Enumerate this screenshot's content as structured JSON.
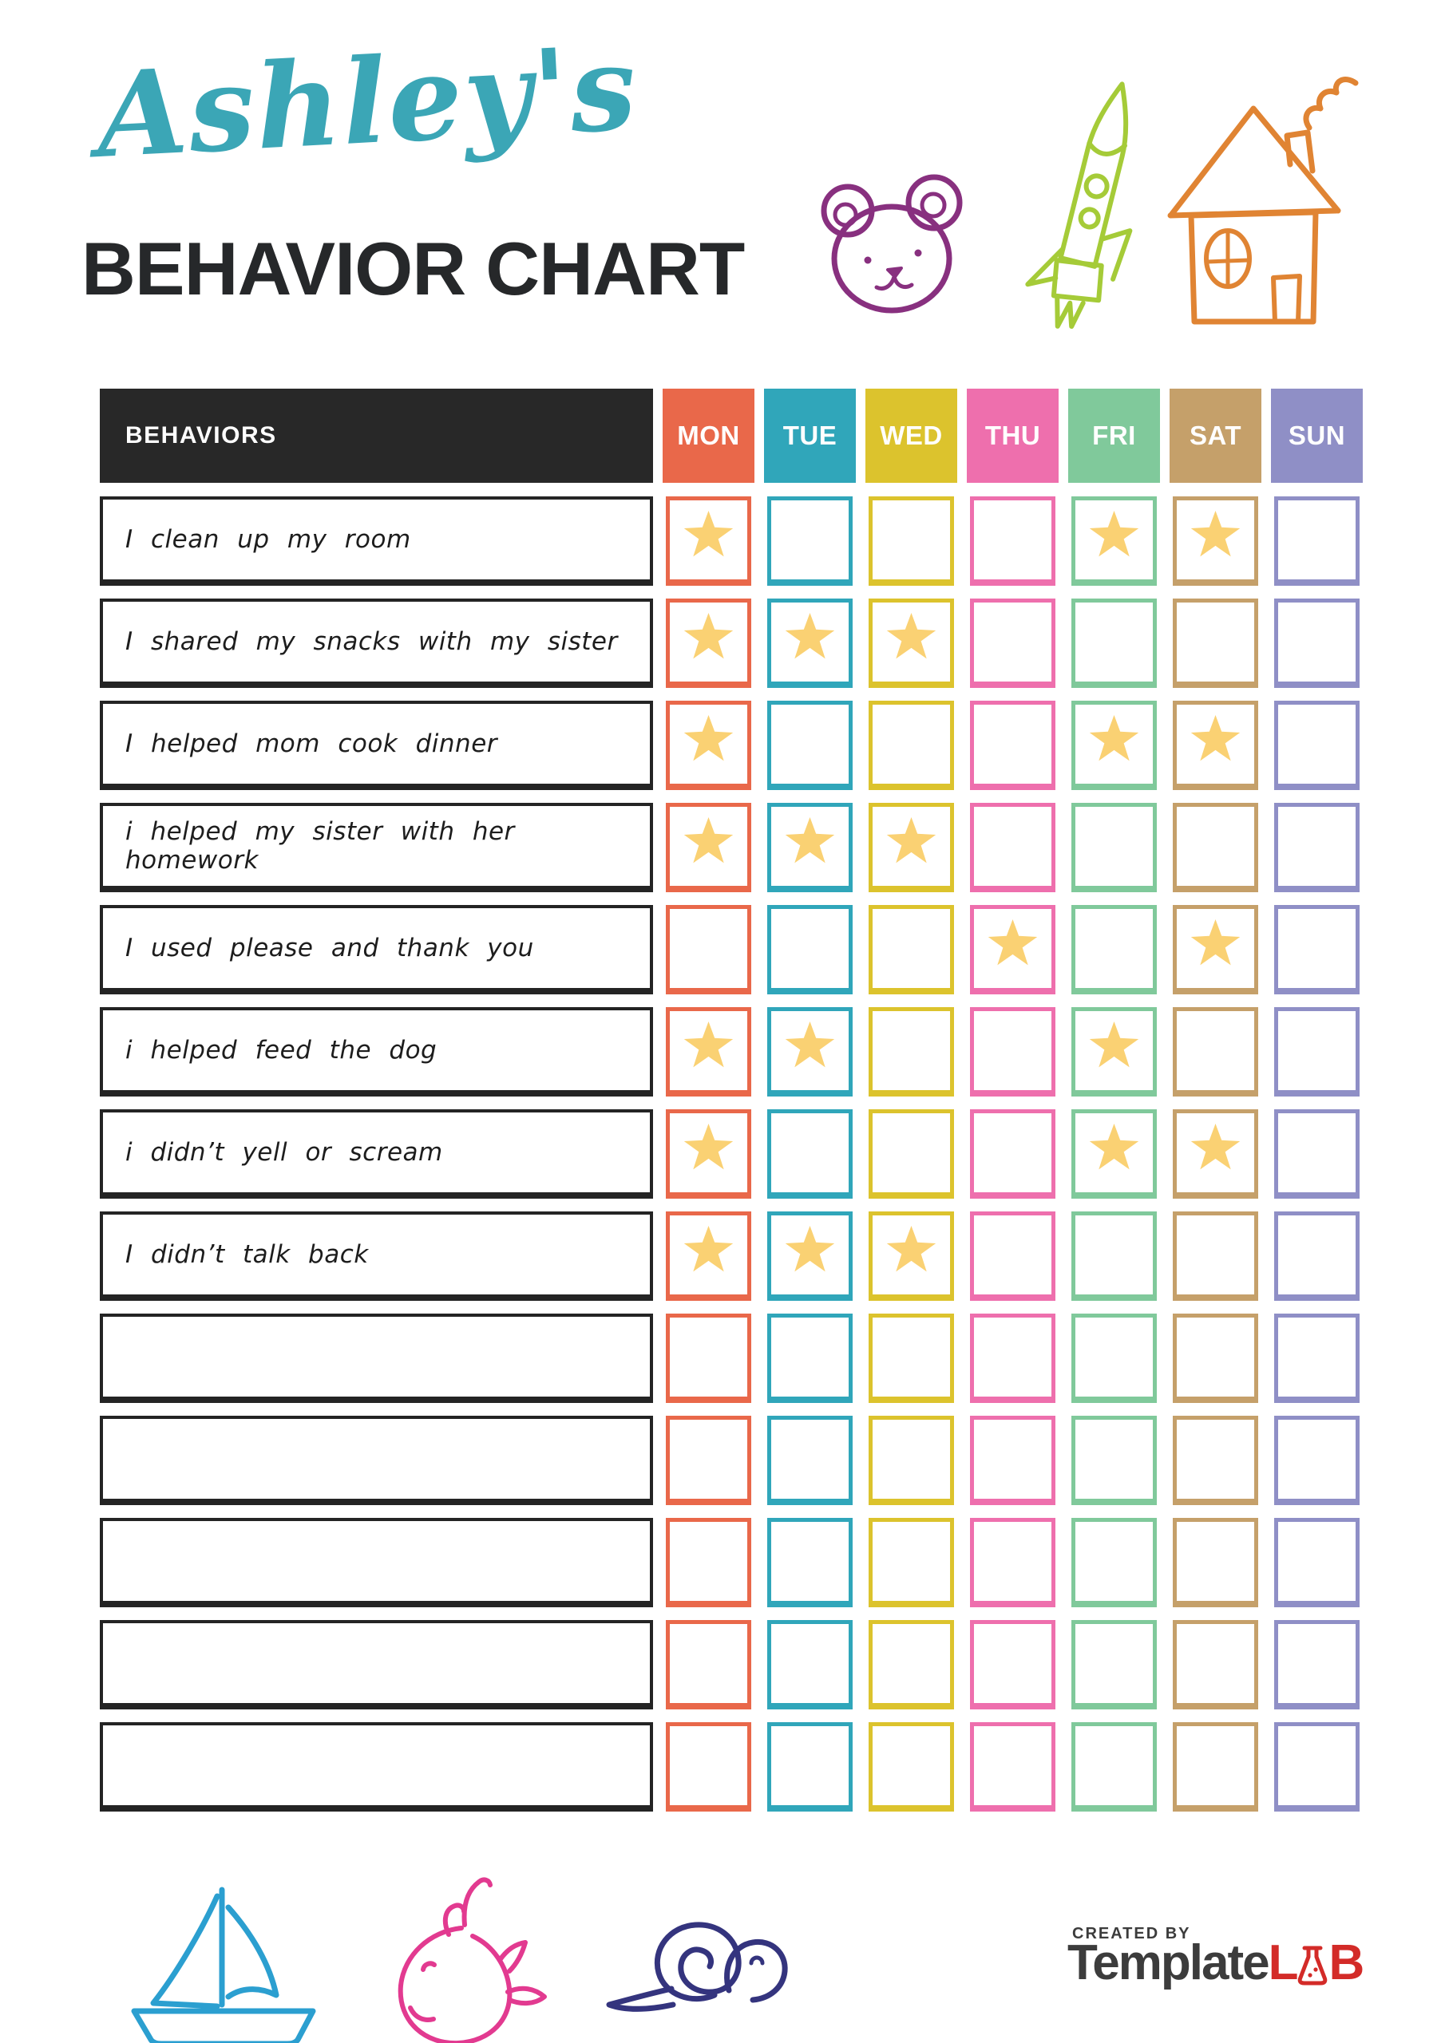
{
  "header": {
    "name": "Ashley's",
    "title": "BEHAVIOR CHART"
  },
  "table": {
    "behaviors_header": "BEHAVIORS",
    "days": [
      {
        "label": "MON",
        "color": "#E9684A"
      },
      {
        "label": "TUE",
        "color": "#30A6BA"
      },
      {
        "label": "WED",
        "color": "#DCC32D"
      },
      {
        "label": "THU",
        "color": "#EE6FAD"
      },
      {
        "label": "FRI",
        "color": "#80C99B"
      },
      {
        "label": "SAT",
        "color": "#C5A06A"
      },
      {
        "label": "SUN",
        "color": "#8F8FC6"
      }
    ],
    "rows": [
      {
        "behavior": "I clean up my room",
        "stars": [
          "MON",
          "FRI",
          "SAT"
        ]
      },
      {
        "behavior": "I shared my snacks with my sister",
        "stars": [
          "MON",
          "TUE",
          "WED"
        ]
      },
      {
        "behavior": "I helped mom cook dinner",
        "stars": [
          "MON",
          "FRI",
          "SAT"
        ]
      },
      {
        "behavior": "i helped my sister with her homework",
        "stars": [
          "MON",
          "TUE",
          "WED"
        ]
      },
      {
        "behavior": "I used please and thank you",
        "stars": [
          "THU",
          "SAT"
        ]
      },
      {
        "behavior": "i helped feed the dog",
        "stars": [
          "MON",
          "TUE",
          "FRI"
        ]
      },
      {
        "behavior": "i didn’t yell or scream",
        "stars": [
          "MON",
          "FRI",
          "SAT"
        ]
      },
      {
        "behavior": "I didn’t talk back",
        "stars": [
          "MON",
          "TUE",
          "WED"
        ]
      },
      {
        "behavior": "",
        "stars": []
      },
      {
        "behavior": "",
        "stars": []
      },
      {
        "behavior": "",
        "stars": []
      },
      {
        "behavior": "",
        "stars": []
      },
      {
        "behavior": "",
        "stars": []
      }
    ]
  },
  "decorations": {
    "top_icons": [
      "bear",
      "rocket",
      "house"
    ],
    "bottom_icons": [
      "sailboat",
      "whale",
      "snail"
    ]
  },
  "footer": {
    "created_by": "CREATED BY",
    "brand_template": "Template",
    "brand_lab": "LAB"
  },
  "colors": {
    "accent": "#3BA6B6",
    "title": "#26282A",
    "header": "#282828",
    "star": "#FAD173",
    "bear": "#88307F",
    "rocket": "#A5CB38",
    "house": "#E08433",
    "boat": "#2B9FD0",
    "whale": "#E23A90",
    "snail": "#34347E",
    "brand_dark": "#3C3C3C",
    "brand_red": "#D32B28"
  }
}
